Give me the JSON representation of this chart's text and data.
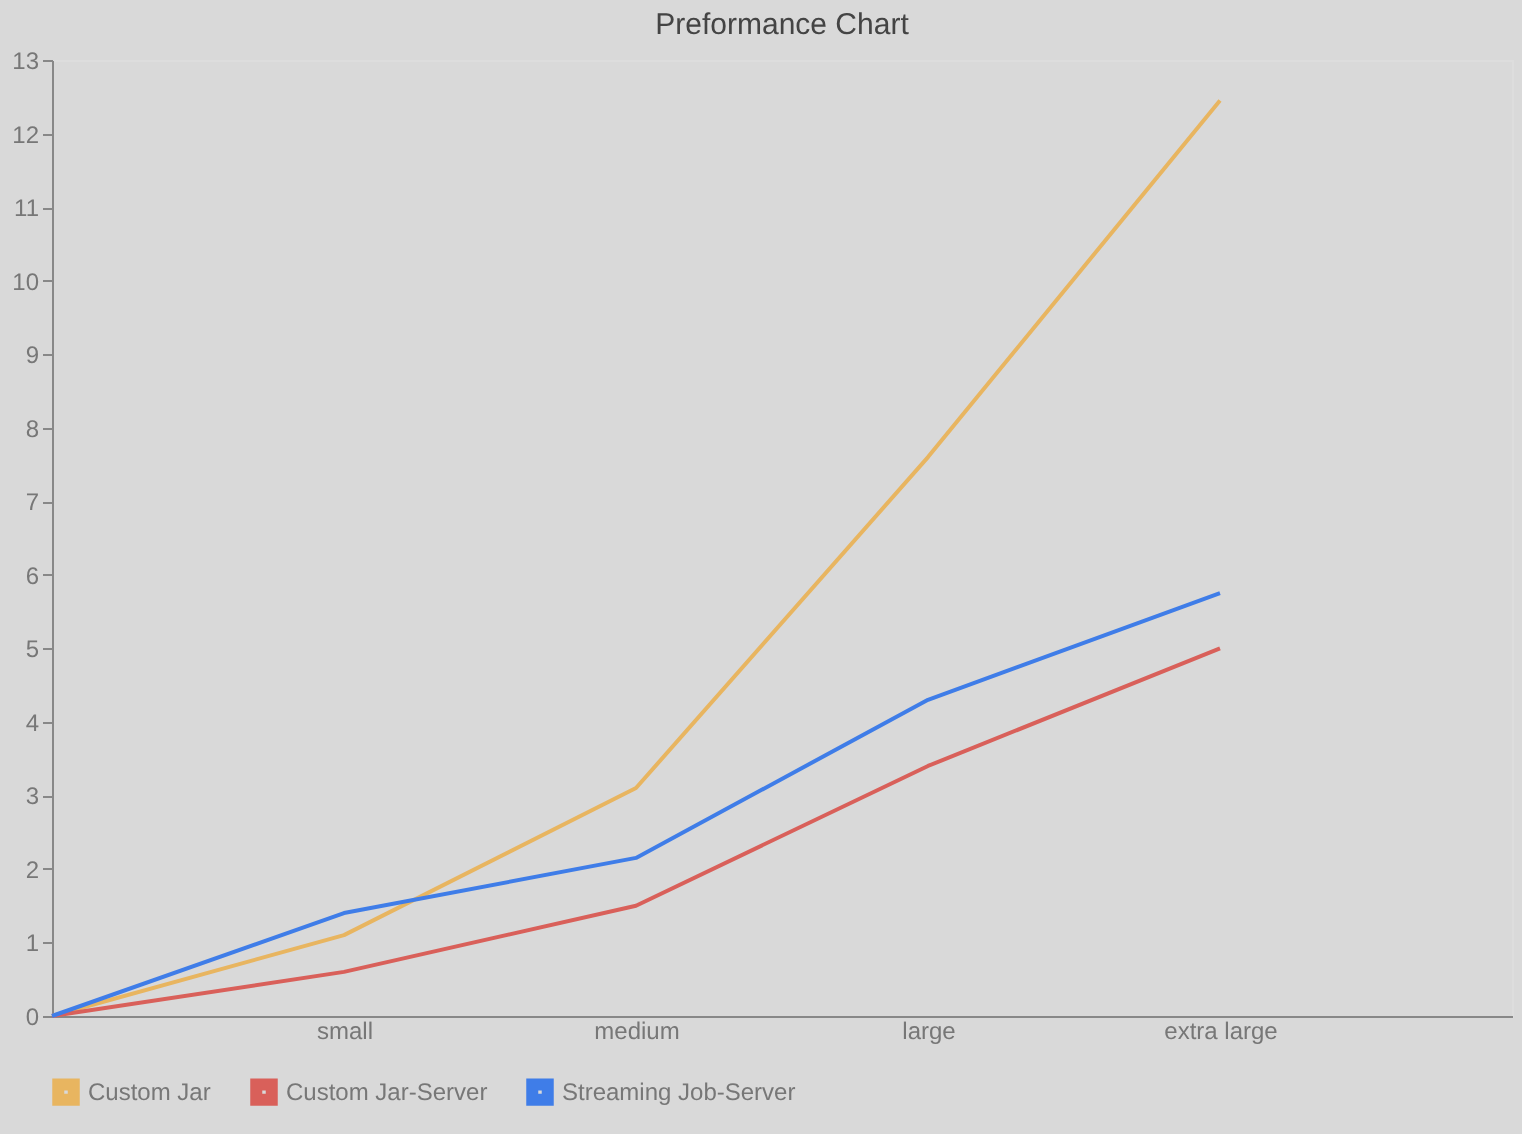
{
  "chart_data": {
    "type": "line",
    "title": "Preformance Chart",
    "categories": [
      null,
      "small",
      "medium",
      "large",
      "extra large",
      null
    ],
    "series": [
      {
        "name": "Custom Jar",
        "color": "#e8b560",
        "values": [
          0,
          1.1,
          3.1,
          7.6,
          12.45,
          null
        ]
      },
      {
        "name": "Custom Jar-Server",
        "color": "#d9605a",
        "values": [
          0,
          0.6,
          1.5,
          3.4,
          5.0,
          null
        ]
      },
      {
        "name": "Streaming Job-Server",
        "color": "#3f7de8",
        "values": [
          0,
          1.4,
          2.15,
          4.3,
          5.75,
          null
        ]
      }
    ],
    "ylim": [
      0,
      13
    ],
    "yticks": [
      0,
      1,
      2,
      3,
      4,
      5,
      6,
      7,
      8,
      9,
      10,
      11,
      12,
      13
    ],
    "legend": "bottom",
    "marker": "none",
    "line_style": "solid"
  }
}
